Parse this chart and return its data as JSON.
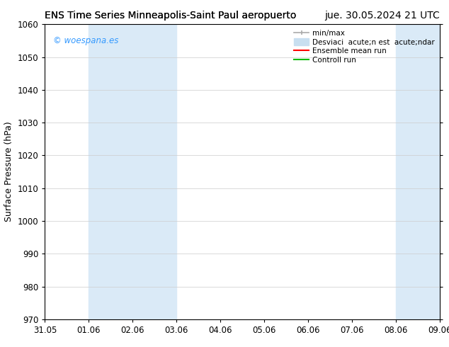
{
  "title_left": "ENS Time Series Minneapolis-Saint Paul aeropuerto",
  "title_right": "jue. 30.05.2024 21 UTC",
  "ylabel": "Surface Pressure (hPa)",
  "ylim": [
    970,
    1060
  ],
  "yticks": [
    970,
    980,
    990,
    1000,
    1010,
    1020,
    1030,
    1040,
    1050,
    1060
  ],
  "xlabel_ticks": [
    "31.05",
    "01.06",
    "02.06",
    "03.06",
    "04.06",
    "05.06",
    "06.06",
    "07.06",
    "08.06",
    "09.06"
  ],
  "watermark": "© woespana.es",
  "watermark_color": "#3399ff",
  "background_color": "#ffffff",
  "plot_bg_color": "#ffffff",
  "shaded_band_color": "#daeaf7",
  "shaded_bands": [
    {
      "x_start": 1,
      "x_end": 3
    },
    {
      "x_start": 8,
      "x_end": 10
    }
  ],
  "legend_entries": [
    {
      "label": "min/max"
    },
    {
      "label": "Desviaci  acute;n est  acute;ndar"
    },
    {
      "label": "Ensemble mean run"
    },
    {
      "label": "Controll run"
    }
  ],
  "legend_colors": [
    "#aaaaaa",
    "#c8dff0",
    "#ff0000",
    "#00bb00"
  ],
  "xlim": [
    0,
    9
  ],
  "x_num_ticks": 10,
  "grid_color": "#cccccc",
  "title_fontsize": 10,
  "tick_fontsize": 8.5,
  "ylabel_fontsize": 9,
  "legend_fontsize": 7.5
}
